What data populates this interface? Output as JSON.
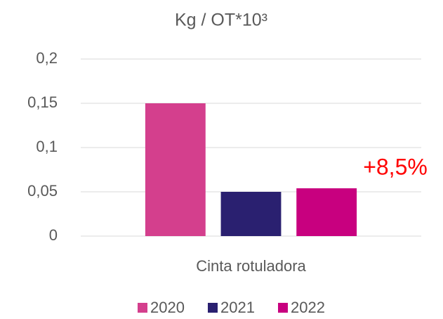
{
  "chart_data": {
    "type": "bar",
    "title": "Kg / OT*10³",
    "categories": [
      "Cinta rotuladora"
    ],
    "series": [
      {
        "name": "2020",
        "color": "#d43f8d",
        "values": [
          0.15
        ]
      },
      {
        "name": "2021",
        "color": "#2a2070",
        "values": [
          0.05
        ]
      },
      {
        "name": "2022",
        "color": "#c8007f",
        "values": [
          0.054
        ]
      }
    ],
    "annotation": "+8,5%",
    "ylim": [
      0,
      0.2
    ],
    "yticks": [
      0,
      {
        "value": 0.05,
        "label": "0,05"
      },
      {
        "value": 0.1,
        "label": "0,1"
      },
      {
        "value": 0.15,
        "label": "0,15"
      },
      {
        "value": 0.2,
        "label": "0,2"
      }
    ],
    "grid": true,
    "legend": "bottom"
  }
}
